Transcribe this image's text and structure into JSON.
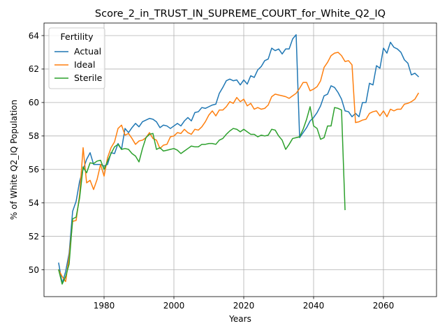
{
  "chart_data": {
    "type": "line",
    "title": "Score_2_in_TRUST_IN_SUPREME_COURT_for_White_Q2_IQ",
    "xlabel": "Years",
    "ylabel": "% of White Q2_IQ Population",
    "xlim": [
      1962.8,
      2075.2
    ],
    "ylim": [
      48.4,
      64.75
    ],
    "xticks": [
      1980,
      2000,
      2020,
      2040,
      2060
    ],
    "yticks": [
      50,
      52,
      54,
      56,
      58,
      60,
      62,
      64
    ],
    "grid": true,
    "legend": {
      "title": "Fertility",
      "placement": "top-left"
    },
    "series": [
      {
        "name": "Actual",
        "color": "#1f77b4",
        "x": [
          1967,
          1968,
          1969,
          1970,
          1971,
          1972,
          1973,
          1974,
          1975,
          1976,
          1977,
          1978,
          1979,
          1980,
          1981,
          1982,
          1983,
          1984,
          1985,
          1986,
          1987,
          1988,
          1989,
          1990,
          1991,
          1992,
          1993,
          1994,
          1995,
          1996,
          1997,
          1998,
          1999,
          2000,
          2001,
          2002,
          2003,
          2004,
          2005,
          2006,
          2007,
          2008,
          2009,
          2010,
          2011,
          2012,
          2013,
          2014,
          2015,
          2016,
          2017,
          2018,
          2019,
          2020,
          2021,
          2022,
          2023,
          2024,
          2025,
          2026,
          2027,
          2028,
          2029,
          2030,
          2031,
          2032,
          2033,
          2034,
          2035,
          2036,
          2037,
          2038,
          2039,
          2040,
          2041,
          2042,
          2043,
          2044,
          2045,
          2046,
          2047,
          2048,
          2049,
          2050,
          2051,
          2052,
          2053,
          2054,
          2055,
          2056,
          2057,
          2058,
          2059,
          2060,
          2061,
          2062,
          2063,
          2064,
          2065,
          2066,
          2067,
          2068,
          2069,
          2070
        ],
        "values": [
          50.4,
          49.2,
          49.9,
          51.0,
          53.5,
          54.1,
          55.3,
          56.0,
          56.6,
          57.0,
          56.3,
          56.3,
          56.3,
          56.2,
          56.3,
          57.0,
          56.95,
          57.55,
          57.2,
          58.45,
          58.2,
          58.5,
          58.75,
          58.55,
          58.85,
          58.95,
          59.05,
          59.0,
          58.85,
          58.5,
          58.65,
          58.6,
          58.45,
          58.6,
          58.75,
          58.6,
          58.9,
          59.1,
          58.9,
          59.4,
          59.45,
          59.7,
          59.65,
          59.75,
          59.85,
          59.9,
          60.55,
          60.9,
          61.3,
          61.4,
          61.3,
          61.35,
          61.05,
          61.35,
          61.1,
          61.6,
          61.5,
          61.95,
          62.15,
          62.5,
          62.6,
          63.25,
          63.1,
          63.2,
          62.9,
          63.2,
          63.2,
          63.8,
          64.05,
          57.9,
          58.2,
          58.5,
          58.9,
          59.1,
          59.4,
          59.8,
          60.4,
          60.5,
          61.0,
          60.9,
          60.6,
          60.2,
          59.5,
          59.45,
          59.15,
          59.35,
          59.15,
          60.0,
          60.0,
          61.15,
          61.05,
          62.2,
          62.05,
          63.25,
          62.95,
          63.6,
          63.3,
          63.2,
          63.0,
          62.55,
          62.35,
          61.65,
          61.75,
          61.55
        ]
      },
      {
        "name": "Ideal",
        "color": "#ff7f0e",
        "x": [
          1967,
          1968,
          1969,
          1970,
          1971,
          1972,
          1973,
          1974,
          1975,
          1976,
          1977,
          1978,
          1979,
          1980,
          1981,
          1982,
          1983,
          1984,
          1985,
          1986,
          1987,
          1988,
          1989,
          1990,
          1991,
          1992,
          1993,
          1994,
          1995,
          1996,
          1997,
          1998,
          1999,
          2000,
          2001,
          2002,
          2003,
          2004,
          2005,
          2006,
          2007,
          2008,
          2009,
          2010,
          2011,
          2012,
          2013,
          2014,
          2015,
          2016,
          2017,
          2018,
          2019,
          2020,
          2021,
          2022,
          2023,
          2024,
          2025,
          2026,
          2027,
          2028,
          2029,
          2030,
          2031,
          2032,
          2033,
          2034,
          2035,
          2036,
          2037,
          2038,
          2039,
          2040,
          2041,
          2042,
          2043,
          2044,
          2045,
          2046,
          2047,
          2048,
          2049,
          2050,
          2051,
          2052,
          2053,
          2054,
          2055,
          2056,
          2057,
          2058,
          2059,
          2060,
          2061,
          2062,
          2063,
          2064,
          2065,
          2066,
          2067,
          2068,
          2069,
          2070
        ],
        "values": [
          50.0,
          49.6,
          49.3,
          50.8,
          52.9,
          52.95,
          54.5,
          57.3,
          55.2,
          55.35,
          54.8,
          55.4,
          56.3,
          55.6,
          56.7,
          57.3,
          57.65,
          58.45,
          58.65,
          58.05,
          58.15,
          57.85,
          57.5,
          57.7,
          57.75,
          57.9,
          58.2,
          57.85,
          57.75,
          57.25,
          57.45,
          57.5,
          57.95,
          58.0,
          58.2,
          58.15,
          58.4,
          58.2,
          58.1,
          58.4,
          58.35,
          58.55,
          58.85,
          59.25,
          59.5,
          59.2,
          59.55,
          59.55,
          59.75,
          60.05,
          59.95,
          60.3,
          60.05,
          60.2,
          59.8,
          59.95,
          59.6,
          59.7,
          59.6,
          59.65,
          59.85,
          60.35,
          60.5,
          60.45,
          60.4,
          60.35,
          60.25,
          60.4,
          60.55,
          60.85,
          61.2,
          61.2,
          60.7,
          60.8,
          60.95,
          61.3,
          62.1,
          62.4,
          62.8,
          62.95,
          63.0,
          62.8,
          62.45,
          62.5,
          62.25,
          58.8,
          58.85,
          58.95,
          59.0,
          59.35,
          59.45,
          59.5,
          59.2,
          59.5,
          59.15,
          59.6,
          59.5,
          59.6,
          59.6,
          59.9,
          59.95,
          60.05,
          60.2,
          60.55
        ]
      },
      {
        "name": "Sterile",
        "color": "#2ca02c",
        "x": [
          1967,
          1968,
          1969,
          1970,
          1971,
          1972,
          1973,
          1974,
          1975,
          1976,
          1977,
          1978,
          1979,
          1980,
          1981,
          1982,
          1983,
          1984,
          1985,
          1986,
          1987,
          1988,
          1989,
          1990,
          1991,
          1992,
          1993,
          1994,
          1995,
          1996,
          1997,
          1998,
          1999,
          2000,
          2001,
          2002,
          2003,
          2004,
          2005,
          2006,
          2007,
          2008,
          2009,
          2010,
          2011,
          2012,
          2013,
          2014,
          2015,
          2016,
          2017,
          2018,
          2019,
          2020,
          2021,
          2022,
          2023,
          2024,
          2025,
          2026,
          2027,
          2028,
          2029,
          2030,
          2031,
          2032,
          2033,
          2034,
          2035,
          2036,
          2037,
          2038,
          2039,
          2040,
          2041,
          2042,
          2043,
          2044,
          2045,
          2046,
          2047,
          2048,
          2049
        ],
        "values": [
          50.0,
          49.15,
          49.6,
          50.35,
          53.05,
          53.15,
          54.3,
          56.15,
          55.8,
          56.4,
          56.35,
          56.5,
          56.55,
          56.0,
          56.5,
          56.95,
          57.35,
          57.5,
          57.2,
          57.25,
          57.2,
          56.95,
          56.8,
          56.45,
          57.25,
          57.9,
          58.1,
          58.15,
          57.2,
          57.3,
          57.1,
          57.15,
          57.2,
          57.25,
          57.15,
          56.95,
          57.1,
          57.25,
          57.4,
          57.35,
          57.35,
          57.5,
          57.5,
          57.55,
          57.55,
          57.5,
          57.75,
          57.85,
          58.1,
          58.3,
          58.45,
          58.4,
          58.25,
          58.4,
          58.25,
          58.1,
          58.1,
          57.95,
          58.05,
          58.0,
          58.05,
          58.4,
          58.35,
          58.0,
          57.75,
          57.2,
          57.5,
          57.85,
          57.9,
          57.95,
          58.4,
          59.0,
          59.75,
          58.6,
          58.45,
          57.8,
          57.9,
          58.6,
          58.6,
          59.7,
          59.65,
          59.55,
          53.6
        ]
      }
    ]
  }
}
